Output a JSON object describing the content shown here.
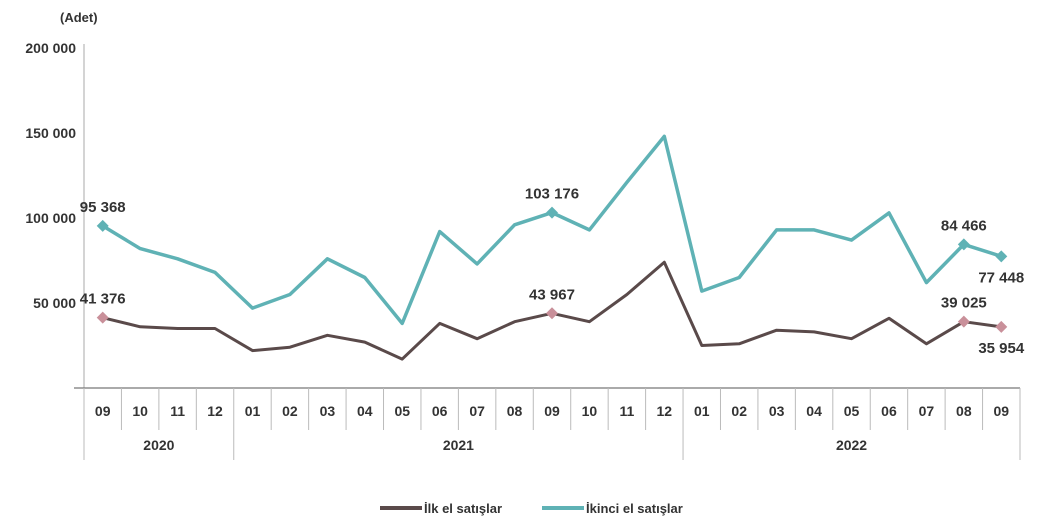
{
  "chart_data": {
    "type": "line",
    "unit_label": "(Adet)",
    "ylim": [
      0,
      200000
    ],
    "yticks": [
      {
        "value": 50000,
        "label": "50 000"
      },
      {
        "value": 100000,
        "label": "100 000"
      },
      {
        "value": 150000,
        "label": "150 000"
      },
      {
        "value": 200000,
        "label": "200 000"
      }
    ],
    "categories": [
      "09",
      "10",
      "11",
      "12",
      "01",
      "02",
      "03",
      "04",
      "05",
      "06",
      "07",
      "08",
      "09",
      "10",
      "11",
      "12",
      "01",
      "02",
      "03",
      "04",
      "05",
      "06",
      "07",
      "08",
      "09"
    ],
    "years": [
      {
        "label": "2020",
        "start": 0,
        "end": 3
      },
      {
        "label": "2021",
        "start": 4,
        "end": 15
      },
      {
        "label": "2022",
        "start": 16,
        "end": 24
      }
    ],
    "legend_position": "bottom",
    "series": [
      {
        "name": "İlk el satışlar",
        "color": "#5a4a4a",
        "marker_color": "#c9909a",
        "values": [
          41376,
          36000,
          35000,
          35000,
          22000,
          24000,
          31000,
          27000,
          17000,
          38000,
          29000,
          39000,
          43967,
          39000,
          55000,
          74000,
          25000,
          26000,
          34000,
          33000,
          29000,
          41000,
          26000,
          39025,
          35954
        ],
        "labels": [
          {
            "index": 0,
            "text": "41 376",
            "pos": "above"
          },
          {
            "index": 12,
            "text": "43 967",
            "pos": "above"
          },
          {
            "index": 23,
            "text": "39 025",
            "pos": "above"
          },
          {
            "index": 24,
            "text": "35 954",
            "pos": "below"
          }
        ]
      },
      {
        "name": "İkinci el satışlar",
        "color": "#5fb2b5",
        "marker_color": "#5fb2b5",
        "values": [
          95368,
          82000,
          76000,
          68000,
          47000,
          55000,
          76000,
          65000,
          38000,
          92000,
          73000,
          96000,
          103176,
          93000,
          121000,
          148000,
          57000,
          65000,
          93000,
          93000,
          87000,
          103000,
          62000,
          84466,
          77448
        ],
        "labels": [
          {
            "index": 0,
            "text": "95 368",
            "pos": "above"
          },
          {
            "index": 12,
            "text": "103 176",
            "pos": "above"
          },
          {
            "index": 23,
            "text": "84 466",
            "pos": "above"
          },
          {
            "index": 24,
            "text": "77 448",
            "pos": "below"
          }
        ]
      }
    ]
  }
}
